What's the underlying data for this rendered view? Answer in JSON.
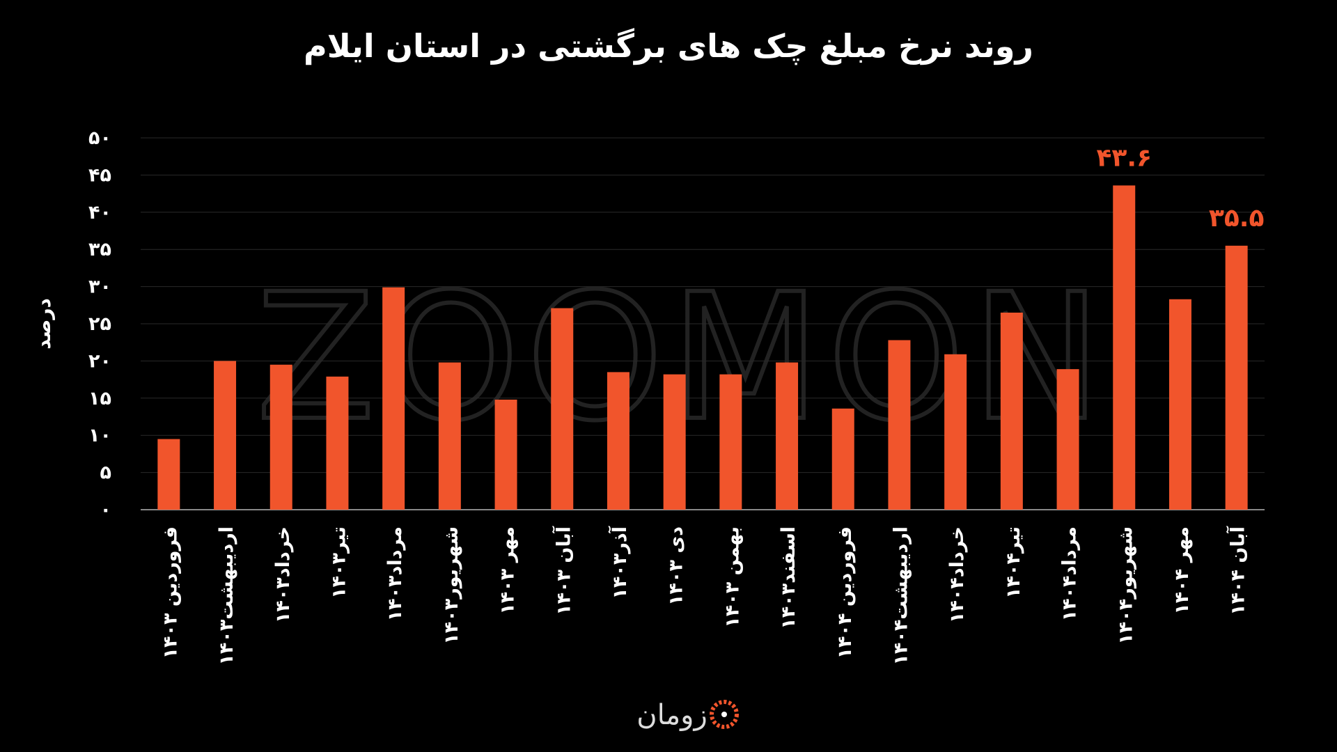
{
  "chart_data": {
    "type": "bar",
    "title": "روند نرخ مبلغ چک های برگشتی در استان ایلام",
    "y_label": "درصد",
    "watermark": "ZOOMON",
    "brand": "زومان",
    "categories": [
      "فروردین ۱۴۰۳",
      "اردیبهشت۱۴۰۳",
      "خرداد۱۴۰۳",
      "تیر۱۴۰۳",
      "مرداد۱۴۰۳",
      "شهریور۱۴۰۳",
      "مهر ۱۴۰۳",
      "آبان ۱۴۰۳",
      "آذر۱۴۰۳",
      "دی ۱۴۰۳",
      "بهمن ۱۴۰۳",
      "اسفند۱۴۰۳",
      "فروردین ۱۴۰۴",
      "اردیبهشت۱۴۰۴",
      "خرداد۱۴۰۴",
      "تیر۱۴۰۴",
      "مرداد۱۴۰۴",
      "شهریور۱۴۰۴",
      "مهر ۱۴۰۴",
      "آبان ۱۴۰۴"
    ],
    "values": [
      9.5,
      20.0,
      19.5,
      17.9,
      29.9,
      19.8,
      14.8,
      27.1,
      18.5,
      18.2,
      18.2,
      19.8,
      13.6,
      22.8,
      20.9,
      26.5,
      18.9,
      43.6,
      28.3,
      35.5
    ],
    "value_labels": [
      null,
      null,
      null,
      null,
      null,
      null,
      null,
      null,
      null,
      null,
      null,
      null,
      null,
      null,
      null,
      null,
      null,
      "۴۳.۶",
      null,
      "۳۵.۵"
    ],
    "color": "#f1552c",
    "ylim": [
      0,
      50
    ],
    "yticks": [
      {
        "value": 0,
        "label": "۰"
      },
      {
        "value": 5,
        "label": "۵"
      },
      {
        "value": 10,
        "label": "۱۰"
      },
      {
        "value": 15,
        "label": "۱۵"
      },
      {
        "value": 20,
        "label": "۲۰"
      },
      {
        "value": 25,
        "label": "۲۵"
      },
      {
        "value": 30,
        "label": "۳۰"
      },
      {
        "value": 35,
        "label": "۳۵"
      },
      {
        "value": 40,
        "label": "۴۰"
      },
      {
        "value": 45,
        "label": "۴۵"
      },
      {
        "value": 50,
        "label": "۵۰"
      }
    ],
    "grid": true
  }
}
